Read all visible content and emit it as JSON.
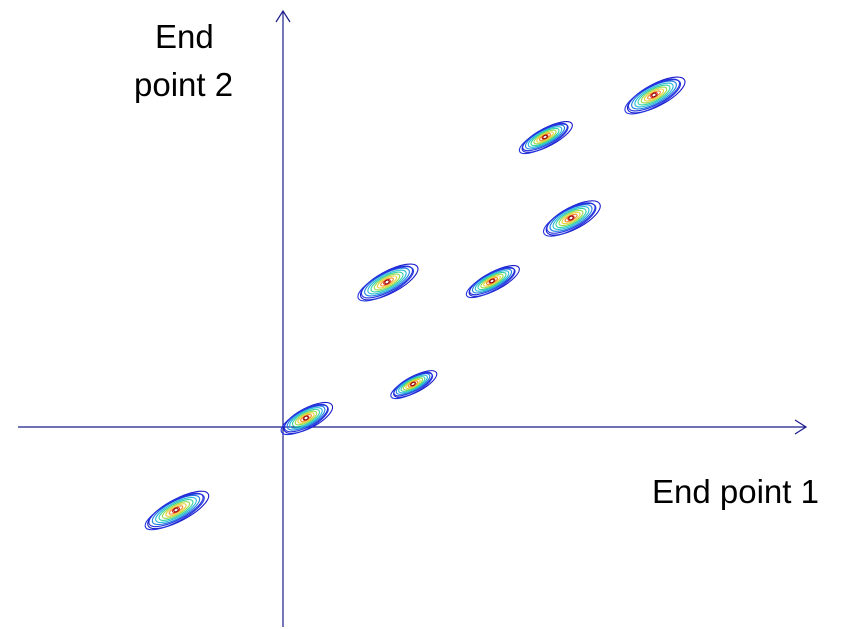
{
  "diagram": {
    "axes": {
      "x_label": "End point 1",
      "y_label_line1": "End",
      "y_label_line2": "point 2",
      "axis_color": "#1a1a8c"
    },
    "contour_colors": [
      "#1a1acc",
      "#2233dd",
      "#1f7fe0",
      "#22b8d8",
      "#33d3a0",
      "#9ad94a",
      "#e8d233",
      "#f28a2a",
      "#d7261e"
    ],
    "clusters": [
      {
        "name": "cluster-1"
      },
      {
        "name": "cluster-2"
      },
      {
        "name": "cluster-3"
      },
      {
        "name": "cluster-4"
      },
      {
        "name": "cluster-5"
      },
      {
        "name": "cluster-6"
      },
      {
        "name": "cluster-7"
      },
      {
        "name": "cluster-8"
      }
    ]
  }
}
